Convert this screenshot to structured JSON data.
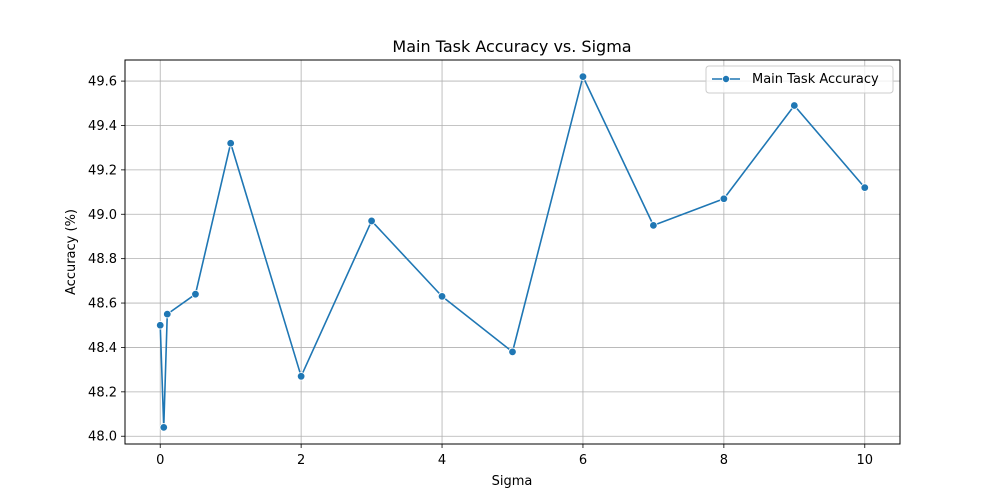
{
  "chart_data": {
    "type": "line",
    "title": "Main Task Accuracy vs. Sigma",
    "xlabel": "Sigma",
    "ylabel": "Accuracy (%)",
    "xlim": [
      -0.5,
      10.5
    ],
    "ylim": [
      47.965,
      49.695
    ],
    "xticks": [
      0,
      2,
      4,
      6,
      8,
      10
    ],
    "xtick_labels": [
      "0",
      "2",
      "4",
      "6",
      "8",
      "10"
    ],
    "yticks": [
      48.0,
      48.2,
      48.4,
      48.6,
      48.8,
      49.0,
      49.2,
      49.4,
      49.6
    ],
    "ytick_labels": [
      "48.0",
      "48.2",
      "48.4",
      "48.6",
      "48.8",
      "49.0",
      "49.2",
      "49.4",
      "49.6"
    ],
    "grid": true,
    "legend_position": "top-right",
    "series": [
      {
        "name": "Main Task Accuracy",
        "color": "#1f77b4",
        "marker": "circle",
        "x": [
          0,
          0.05,
          0.1,
          0.5,
          1,
          2,
          3,
          4,
          5,
          6,
          7,
          8,
          9,
          10
        ],
        "y": [
          48.5,
          48.04,
          48.55,
          48.64,
          49.32,
          48.27,
          48.97,
          48.63,
          48.38,
          49.62,
          48.95,
          49.07,
          49.49,
          49.12
        ]
      }
    ]
  }
}
